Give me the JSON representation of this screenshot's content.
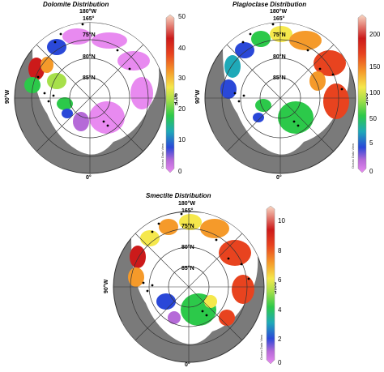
{
  "colors": {
    "land": "#7a7a7a",
    "ocean": "#ffffff",
    "grid": "#333333",
    "ramp": [
      "#e88af0",
      "#b56ad8",
      "#2a48d8",
      "#1fa9b8",
      "#2cc94a",
      "#a7e04a",
      "#f5e84c",
      "#f59a2a",
      "#e8431f",
      "#cc1a1a",
      "#f9d9c5"
    ]
  },
  "maps": [
    {
      "id": "dolomite",
      "title": "Dolomite Distribution",
      "lon_labels": {
        "top": "180°W",
        "top_alt": "165°",
        "left": "90°W",
        "right": "90°E",
        "bottom": "0°"
      },
      "lat_labels": [
        "75°N",
        "80°N",
        "85°N"
      ],
      "colorbar": {
        "ticks": [
          "50",
          "40",
          "30",
          "20",
          "10",
          "0"
        ],
        "sublabel": "Ocean Data View"
      }
    },
    {
      "id": "plagioclase",
      "title": "Plagioclase Distribution",
      "lon_labels": {
        "top": "180°W",
        "top_alt": "165°",
        "left": "90°W",
        "right": "90°E",
        "bottom": "0°"
      },
      "lat_labels": [
        "75°N",
        "80°N",
        "85°N"
      ],
      "colorbar": {
        "ticks": [
          "200",
          "150",
          "100",
          "50",
          "5",
          "0"
        ],
        "sublabel": "Ocean Data View"
      }
    },
    {
      "id": "smectite",
      "title": "Smectite Distribution",
      "lon_labels": {
        "top": "180°W",
        "top_alt": "165°",
        "left": "90°W",
        "right": "90°E",
        "bottom": "0°"
      },
      "lat_labels": [
        "75°N",
        "80°N",
        "85°N"
      ],
      "colorbar": {
        "ticks": [
          "10",
          "8",
          "6",
          "4",
          "2",
          "0"
        ],
        "sublabel": "Ocean Data View"
      }
    }
  ]
}
